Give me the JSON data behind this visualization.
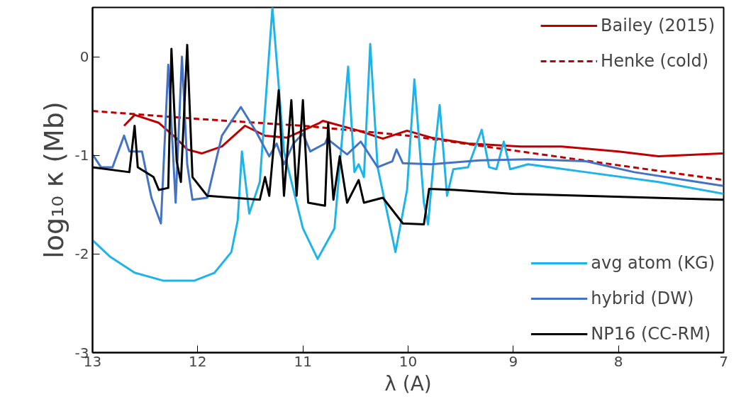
{
  "chart_data": {
    "type": "line",
    "xlabel": "λ (A)",
    "ylabel": "log₁₀ κ (Mb)",
    "xlim": [
      13,
      7
    ],
    "ylim": [
      -3,
      0.5
    ],
    "xticks": [
      13,
      12,
      11,
      10,
      9,
      8,
      7
    ],
    "yticks": [
      -3,
      -2,
      -1,
      0
    ],
    "grid": false,
    "legend": "right",
    "marker": "none",
    "series": [
      {
        "name": "Bailey (2015)",
        "color": "#c00000",
        "line_style": "solid",
        "x": [
          12.7,
          12.6,
          12.37,
          12.21,
          12.1,
          11.96,
          11.77,
          11.55,
          11.36,
          11.15,
          10.84,
          10.81,
          10.47,
          10.24,
          10.01,
          9.78,
          9.43,
          8.93,
          8.54,
          8.0,
          7.62,
          7.0
        ],
        "values": [
          -0.7,
          -0.59,
          -0.67,
          -0.82,
          -0.94,
          -0.98,
          -0.91,
          -0.7,
          -0.8,
          -0.82,
          -0.67,
          -0.65,
          -0.75,
          -0.83,
          -0.75,
          -0.82,
          -0.88,
          -0.91,
          -0.91,
          -0.96,
          -1.01,
          -0.98
        ]
      },
      {
        "name": "Henke (cold)",
        "color": "#c00000",
        "line_style": "dashed",
        "x": [
          13,
          12,
          11,
          10,
          9,
          8,
          7
        ],
        "values": [
          -0.55,
          -0.63,
          -0.7,
          -0.8,
          -0.95,
          -1.1,
          -1.25
        ]
      },
      {
        "name": "avg atom (KG)",
        "color": "#1eb4ea",
        "line_style": "solid",
        "x": [
          13,
          12.83,
          12.6,
          12.33,
          12.03,
          11.84,
          11.68,
          11.62,
          11.58,
          11.51,
          11.41,
          11.29,
          11.18,
          11.0,
          10.86,
          10.7,
          10.57,
          10.51,
          10.47,
          10.42,
          10.36,
          10.29,
          10.12,
          10.01,
          9.94,
          9.85,
          9.81,
          9.76,
          9.7,
          9.63,
          9.57,
          9.43,
          9.3,
          9.23,
          9.16,
          9.09,
          9.03,
          8.86,
          8.31,
          7.62,
          7.0
        ],
        "values": [
          -1.86,
          -2.03,
          -2.19,
          -2.27,
          -2.27,
          -2.19,
          -1.98,
          -1.66,
          -0.96,
          -1.59,
          -1.27,
          0.5,
          -0.96,
          -1.74,
          -2.05,
          -1.74,
          -0.1,
          -1.17,
          -1.09,
          -1.22,
          0.13,
          -1.12,
          -1.98,
          -1.35,
          -0.23,
          -1.48,
          -1.7,
          -1.09,
          -0.49,
          -1.41,
          -1.14,
          -1.12,
          -0.74,
          -1.12,
          -1.14,
          -0.86,
          -1.14,
          -1.09,
          -1.17,
          -1.27,
          -1.39
        ]
      },
      {
        "name": "hybrid (DW)",
        "color": "#4472c4",
        "line_style": "solid",
        "x": [
          13,
          12.92,
          12.81,
          12.7,
          12.65,
          12.53,
          12.44,
          12.35,
          12.28,
          12.21,
          12.15,
          12.1,
          12.05,
          11.91,
          11.77,
          11.59,
          11.45,
          11.32,
          11.25,
          11.18,
          11.09,
          11.0,
          10.93,
          10.79,
          10.77,
          10.58,
          10.45,
          10.29,
          10.15,
          10.11,
          10.05,
          9.78,
          9.32,
          8.86,
          8.31,
          7.85,
          7.0
        ],
        "values": [
          -0.99,
          -1.12,
          -1.12,
          -0.8,
          -0.96,
          -0.96,
          -1.43,
          -1.69,
          -0.08,
          -1.48,
          0.0,
          -1.09,
          -1.45,
          -1.43,
          -0.8,
          -0.51,
          -0.75,
          -1.01,
          -0.88,
          -1.09,
          -0.88,
          -0.78,
          -0.96,
          -0.88,
          -0.83,
          -0.99,
          -0.86,
          -1.12,
          -1.06,
          -0.94,
          -1.08,
          -1.09,
          -1.05,
          -1.04,
          -1.06,
          -1.17,
          -1.31
        ]
      },
      {
        "name": "NP16 (CC-RM)",
        "color": "#000000",
        "line_style": "solid",
        "x": [
          13,
          12.65,
          12.6,
          12.57,
          12.42,
          12.37,
          12.28,
          12.25,
          12.2,
          12.16,
          12.1,
          12.05,
          11.91,
          11.41,
          11.36,
          11.32,
          11.23,
          11.18,
          11.11,
          11.06,
          11.0,
          10.95,
          10.79,
          10.76,
          10.71,
          10.65,
          10.58,
          10.47,
          10.42,
          10.24,
          10.05,
          9.85,
          9.8,
          9.55,
          9.0,
          7.0
        ],
        "values": [
          -1.12,
          -1.17,
          -0.7,
          -1.12,
          -1.22,
          -1.35,
          -1.33,
          0.08,
          -1.06,
          -1.27,
          0.12,
          -1.22,
          -1.41,
          -1.45,
          -1.22,
          -1.41,
          -0.34,
          -1.41,
          -0.44,
          -1.41,
          -0.44,
          -1.48,
          -1.51,
          -0.67,
          -1.45,
          -1.01,
          -1.48,
          -1.25,
          -1.48,
          -1.43,
          -1.69,
          -1.7,
          -1.34,
          -1.35,
          -1.39,
          -1.45
        ]
      }
    ]
  }
}
